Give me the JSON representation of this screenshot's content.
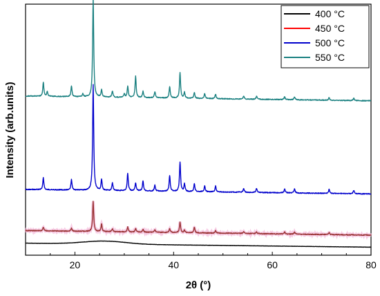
{
  "chart_data": {
    "type": "line",
    "title": "",
    "xlabel": "2θ (°)",
    "ylabel": "Intensity (arb.units)",
    "xlim": [
      10,
      80
    ],
    "ylim": [
      0,
      100
    ],
    "xticks": [
      "20",
      "40",
      "60",
      "80"
    ],
    "xtick_values": [
      20,
      40,
      60,
      80
    ],
    "y_ticklabels": false,
    "grid": false,
    "legend_position": "top-right",
    "series": [
      {
        "name": "400 °C",
        "color": "#000000",
        "kind": "amorphous",
        "baseline_start": 4.8,
        "baseline_end": 3.2,
        "hump_center": 26,
        "hump_height": 1.2,
        "hump_width": 6,
        "peaks": []
      },
      {
        "name": "450 °C",
        "color": "#ff0000",
        "blend_color": "#993333",
        "kind": "crystalline",
        "baseline_start": 9.8,
        "baseline_end": 8.0,
        "peaks": [
          [
            13.6,
            1.4
          ],
          [
            19.3,
            1.2
          ],
          [
            23.7,
            12.0
          ],
          [
            25.4,
            3.0
          ],
          [
            27.6,
            1.2
          ],
          [
            30.7,
            2.0
          ],
          [
            32.3,
            1.4
          ],
          [
            33.8,
            1.2
          ],
          [
            36.2,
            1.0
          ],
          [
            39.2,
            1.6
          ],
          [
            41.3,
            4.2
          ],
          [
            42.2,
            1.0
          ],
          [
            44.2,
            2.2
          ],
          [
            48.5,
            1.0
          ],
          [
            54.2,
            0.8
          ],
          [
            56.8,
            0.8
          ],
          [
            62.5,
            0.8
          ],
          [
            64.5,
            0.8
          ],
          [
            71.5,
            0.8
          ]
        ]
      },
      {
        "name": "500 °C",
        "color": "#0000cc",
        "kind": "crystalline",
        "baseline_start": 26.2,
        "baseline_end": 24.4,
        "peaks": [
          [
            13.6,
            4.8
          ],
          [
            19.3,
            4.2
          ],
          [
            23.7,
            42.0
          ],
          [
            25.4,
            4.2
          ],
          [
            27.6,
            3.2
          ],
          [
            30.7,
            7.0
          ],
          [
            32.3,
            3.2
          ],
          [
            33.8,
            4.0
          ],
          [
            36.2,
            2.5
          ],
          [
            39.2,
            6.3
          ],
          [
            41.3,
            11.8
          ],
          [
            42.2,
            3.0
          ],
          [
            44.2,
            3.2
          ],
          [
            46.3,
            2.3
          ],
          [
            48.5,
            2.3
          ],
          [
            54.2,
            1.6
          ],
          [
            56.8,
            1.6
          ],
          [
            62.5,
            1.6
          ],
          [
            64.5,
            1.6
          ],
          [
            71.5,
            1.6
          ],
          [
            76.5,
            1.4
          ]
        ]
      },
      {
        "name": "550 °C",
        "color": "#1a8080",
        "kind": "crystalline",
        "baseline_start": 63.4,
        "baseline_end": 61.5,
        "peaks": [
          [
            13.6,
            5.5
          ],
          [
            14.4,
            1.8
          ],
          [
            19.3,
            4.2
          ],
          [
            21.6,
            1.2
          ],
          [
            23.7,
            39.5
          ],
          [
            25.4,
            2.8
          ],
          [
            27.6,
            2.5
          ],
          [
            30.0,
            1.5
          ],
          [
            30.7,
            4.5
          ],
          [
            32.3,
            8.5
          ],
          [
            33.8,
            2.5
          ],
          [
            36.2,
            2.5
          ],
          [
            39.2,
            4.5
          ],
          [
            41.3,
            10.2
          ],
          [
            42.2,
            2.4
          ],
          [
            44.2,
            2.3
          ],
          [
            46.3,
            2.0
          ],
          [
            48.5,
            1.8
          ],
          [
            54.2,
            1.2
          ],
          [
            56.8,
            1.2
          ],
          [
            62.5,
            1.2
          ],
          [
            64.5,
            1.2
          ],
          [
            71.5,
            1.0
          ],
          [
            76.5,
            1.0
          ]
        ]
      }
    ]
  }
}
